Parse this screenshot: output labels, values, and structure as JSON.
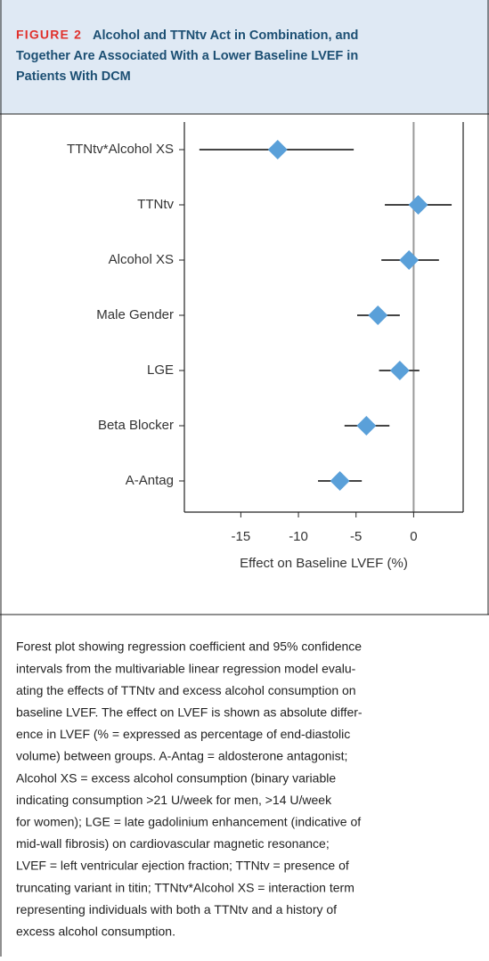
{
  "figure_label": "FIGURE 2",
  "title_lines": [
    "Alcohol and TTNtv Act in Combination, and",
    "Together Are Associated With a Lower Baseline LVEF in",
    "Patients With DCM"
  ],
  "chart_data": {
    "type": "forest",
    "categories": [
      "TTNtv*Alcohol XS",
      "TTNtv",
      "Alcohol XS",
      "Male Gender",
      "LGE",
      "Beta Blocker",
      "A-Antag"
    ],
    "values": [
      -11.8,
      0.4,
      -0.4,
      -3.1,
      -1.2,
      -4.1,
      -6.4
    ],
    "ci_low": [
      -18.6,
      -2.5,
      -2.8,
      -4.9,
      -3.0,
      -6.0,
      -8.3
    ],
    "ci_high": [
      -5.2,
      3.3,
      2.2,
      -1.2,
      0.5,
      -2.1,
      -4.5
    ],
    "color": "#5aa0d9",
    "xlim": [
      -19.9,
      4.3
    ],
    "xticks": [
      -15,
      -10,
      -5,
      0
    ],
    "x_label": "Effect on Baseline LVEF (%)",
    "reference_line": 0
  },
  "caption_lines": [
    "Forest plot showing regression coefficient and 95% confidence",
    "intervals from the multivariable linear regression model evalu-",
    "ating the effects of TTNtv and excess alcohol consumption on",
    "baseline LVEF. The effect on LVEF is shown as absolute differ-",
    "ence in LVEF (% = expressed as percentage of end-diastolic",
    "volume) between groups. A-Antag = aldosterone antagonist;",
    "Alcohol XS = excess alcohol consumption (binary variable",
    "indicating consumption >21 U/week for men, >14 U/week",
    "for women); LGE = late gadolinium enhancement (indicative of",
    "mid-wall fibrosis) on cardiovascular magnetic resonance;",
    "LVEF = left ventricular ejection fraction; TTNtv = presence of",
    "truncating variant in titin; TTNtv*Alcohol XS = interaction term",
    "representing individuals with both a TTNtv and a history of",
    "excess alcohol consumption."
  ]
}
